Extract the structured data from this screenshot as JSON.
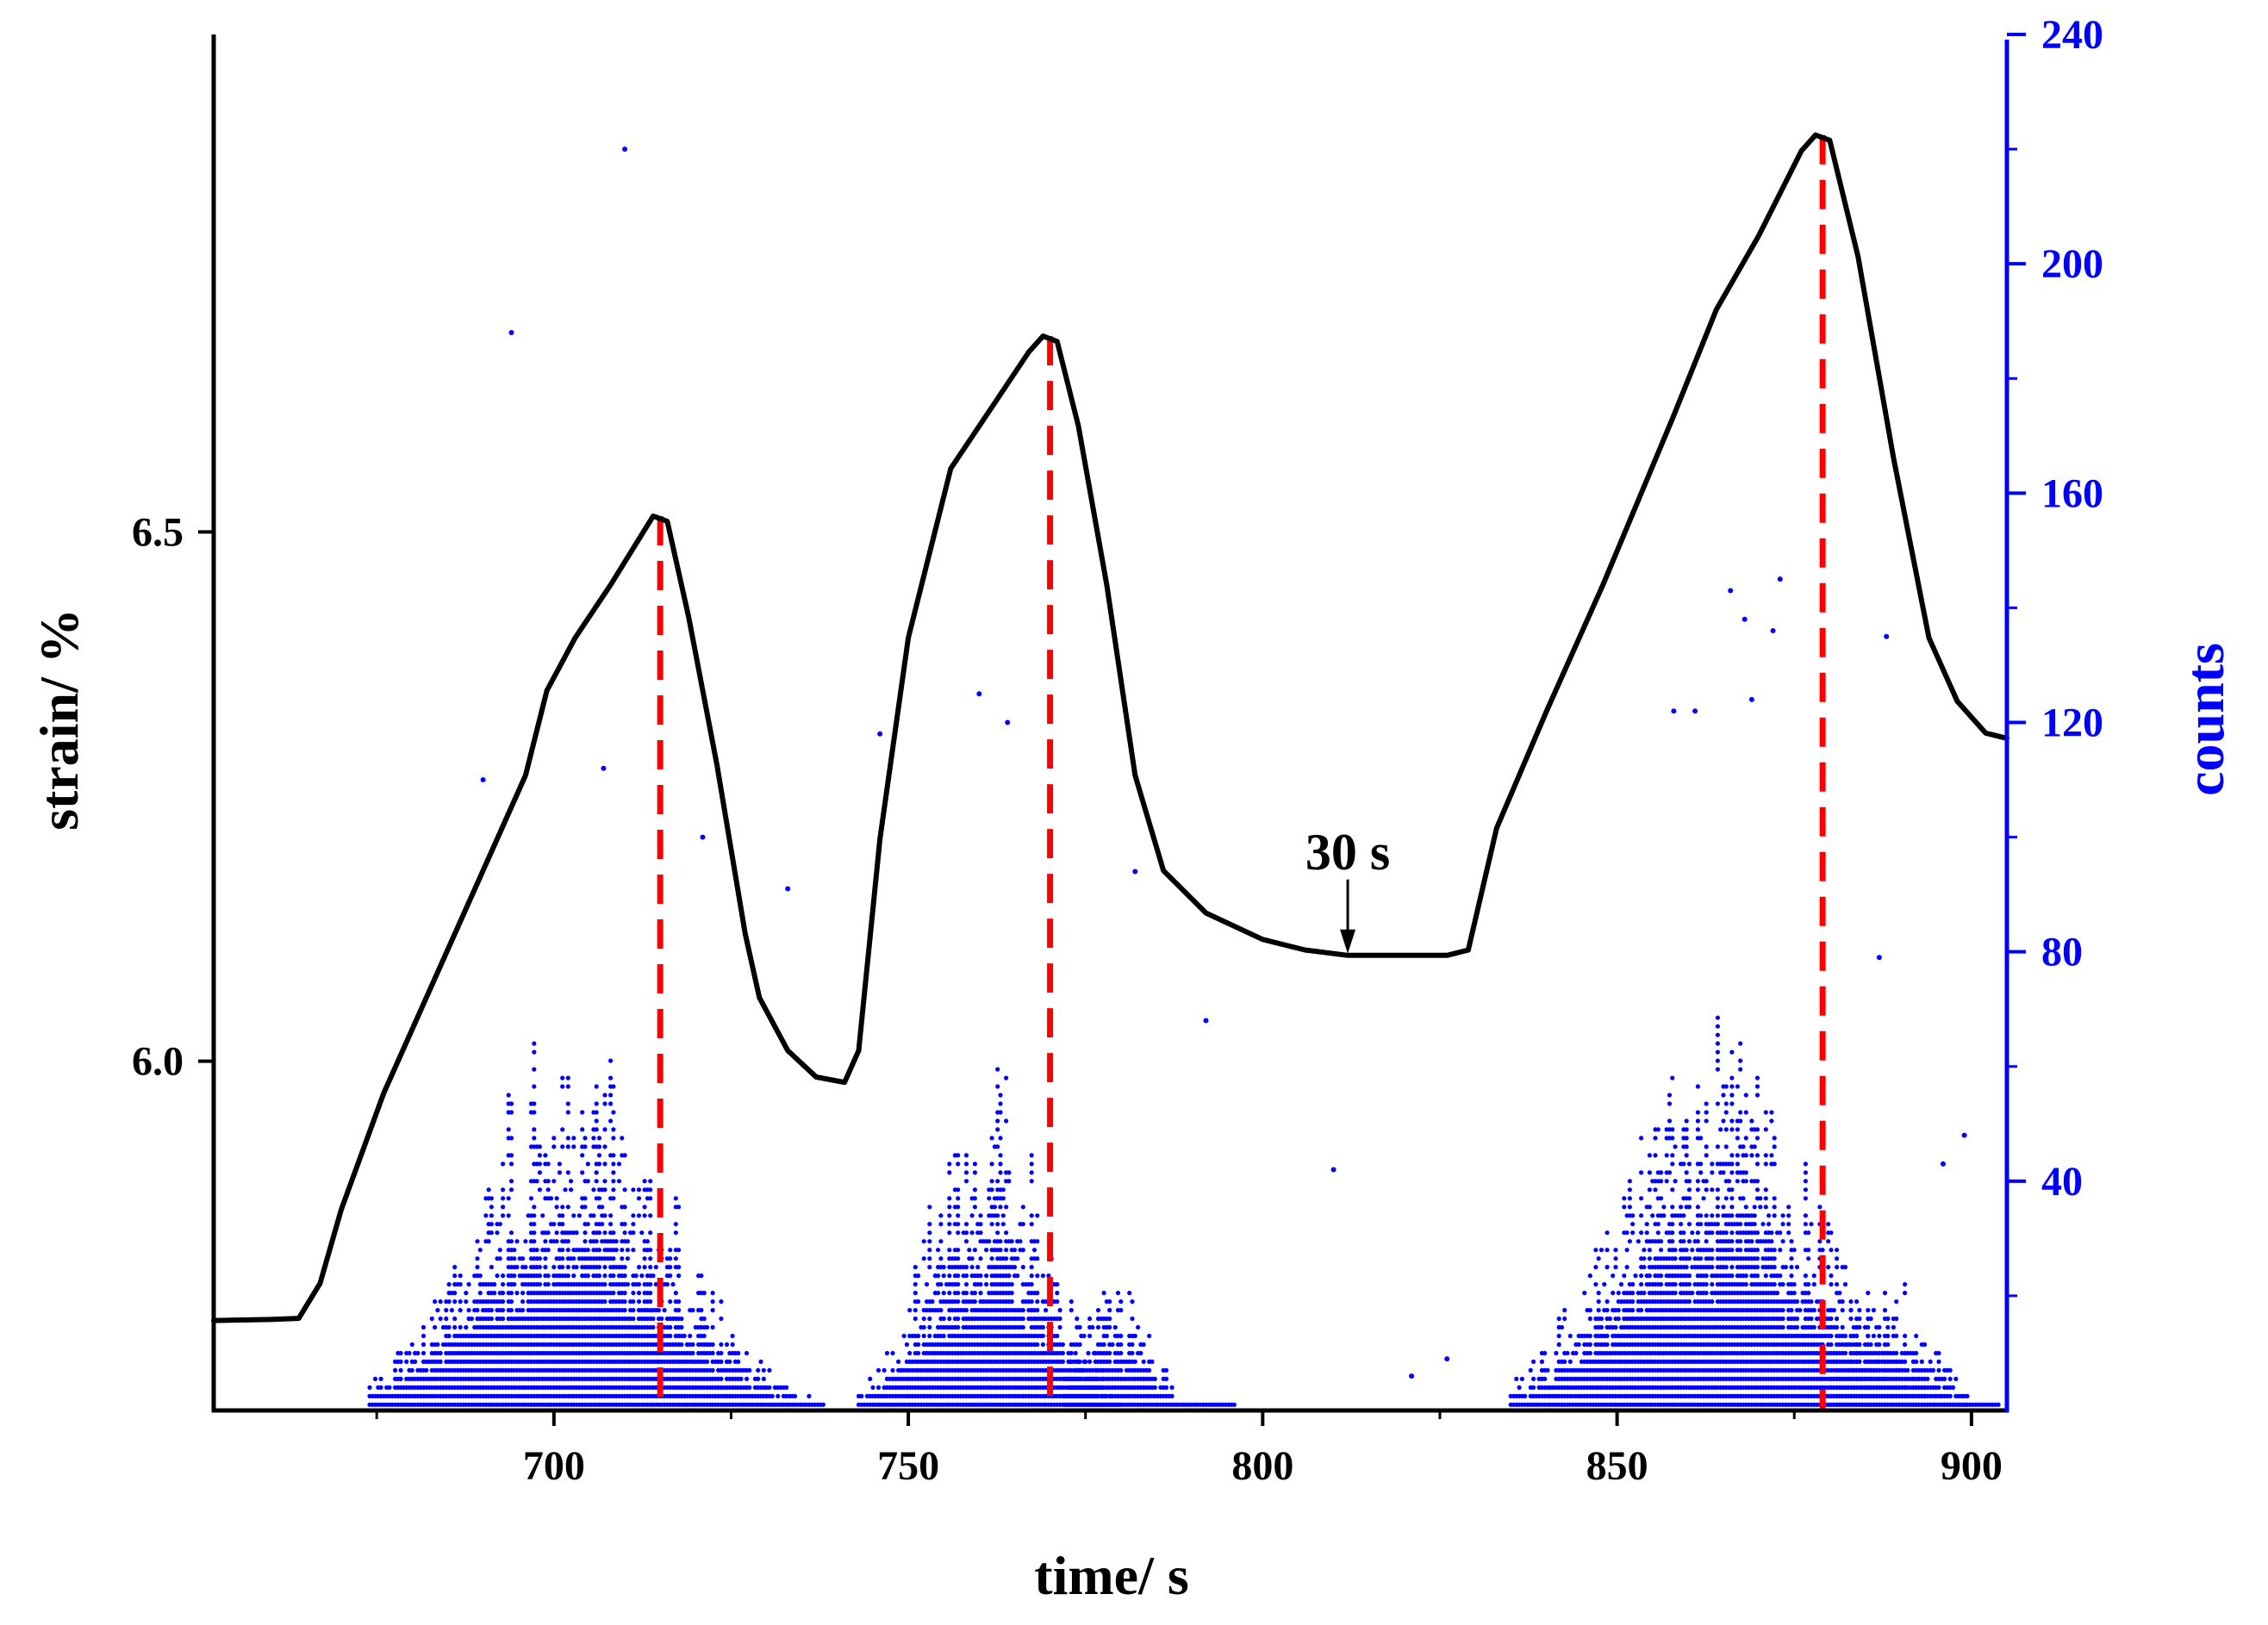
{
  "chart_data": {
    "type": "line+scatter",
    "title": "",
    "xlabel": "time/ s",
    "ylabel_left": "strain/ %",
    "ylabel_right": "counts",
    "xlim": [
      652,
      905
    ],
    "ylim_left": [
      5.67,
      6.97
    ],
    "ylim_right": [
      0,
      240
    ],
    "x_ticks": [
      700,
      750,
      800,
      850,
      900
    ],
    "y_ticks_left": [
      6.0,
      6.5
    ],
    "y_ticks_left_labels": [
      "6.0",
      "6.5"
    ],
    "y_ticks_right": [
      40,
      80,
      120,
      160,
      200,
      240
    ],
    "colors": {
      "strain": "#000000",
      "counts": "#0000ff",
      "peak_lines": "#ff0000",
      "axis_left": "#000000",
      "axis_right": "#0000ff"
    },
    "series": [
      {
        "name": "strain",
        "axis": "left",
        "style": "line",
        "points": [
          [
            652,
            5.755
          ],
          [
            660,
            5.756
          ],
          [
            664,
            5.757
          ],
          [
            667,
            5.79
          ],
          [
            670,
            5.86
          ],
          [
            676,
            5.97
          ],
          [
            684,
            6.09
          ],
          [
            692,
            6.21
          ],
          [
            696,
            6.27
          ],
          [
            699,
            6.35
          ],
          [
            703,
            6.4
          ],
          [
            708,
            6.45
          ],
          [
            714,
            6.515
          ],
          [
            716,
            6.51
          ],
          [
            719,
            6.42
          ],
          [
            723,
            6.28
          ],
          [
            727,
            6.12
          ],
          [
            729,
            6.06
          ],
          [
            733,
            6.01
          ],
          [
            737,
            5.985
          ],
          [
            741,
            5.98
          ],
          [
            743,
            6.01
          ],
          [
            746,
            6.21
          ],
          [
            750,
            6.4
          ],
          [
            756,
            6.56
          ],
          [
            762,
            6.62
          ],
          [
            767,
            6.67
          ],
          [
            769,
            6.685
          ],
          [
            771,
            6.68
          ],
          [
            774,
            6.6
          ],
          [
            778,
            6.45
          ],
          [
            782,
            6.27
          ],
          [
            786,
            6.18
          ],
          [
            792,
            6.14
          ],
          [
            800,
            6.115
          ],
          [
            806,
            6.105
          ],
          [
            812,
            6.1
          ],
          [
            820,
            6.1
          ],
          [
            826,
            6.1
          ],
          [
            829,
            6.105
          ],
          [
            833,
            6.22
          ],
          [
            840,
            6.33
          ],
          [
            848,
            6.45
          ],
          [
            858,
            6.61
          ],
          [
            864,
            6.71
          ],
          [
            870,
            6.78
          ],
          [
            876,
            6.86
          ],
          [
            878,
            6.875
          ],
          [
            880,
            6.87
          ],
          [
            884,
            6.76
          ],
          [
            889,
            6.57
          ],
          [
            894,
            6.4
          ],
          [
            898,
            6.34
          ],
          [
            902,
            6.31
          ],
          [
            905,
            6.305
          ]
        ]
      },
      {
        "name": "counts",
        "axis": "right",
        "style": "scatter",
        "clusters": [
          {
            "center": 703,
            "spread": 13,
            "lo": 674,
            "hi": 738,
            "peak": 60
          },
          {
            "center": 761,
            "spread": 8,
            "lo": 743,
            "hi": 780,
            "peak": 52
          },
          {
            "center": 779,
            "spread": 5,
            "lo": 772,
            "hi": 796,
            "peak": 20
          },
          {
            "center": 864,
            "spread": 13,
            "lo": 835,
            "hi": 900,
            "peak": 58
          },
          {
            "center": 888,
            "spread": 6,
            "lo": 879,
            "hi": 904,
            "peak": 22
          }
        ],
        "outliers": [
          [
            710,
            220
          ],
          [
            694,
            188
          ],
          [
            760,
            125
          ],
          [
            764,
            120
          ],
          [
            746,
            118
          ],
          [
            866,
            143
          ],
          [
            873,
            145
          ],
          [
            868,
            138
          ],
          [
            872,
            136
          ],
          [
            888,
            135
          ],
          [
            869,
            124
          ],
          [
            858,
            122
          ],
          [
            861,
            122
          ],
          [
            707,
            112
          ],
          [
            690,
            110
          ],
          [
            721,
            100
          ],
          [
            733,
            91
          ],
          [
            782,
            94
          ],
          [
            792,
            68
          ],
          [
            810,
            42
          ],
          [
            887,
            79
          ],
          [
            899,
            48
          ],
          [
            896,
            43
          ],
          [
            821,
            6
          ],
          [
            826,
            9
          ]
        ]
      }
    ],
    "vlines": [
      {
        "x": 715,
        "color": "#ff0000",
        "style": "dashed"
      },
      {
        "x": 770,
        "color": "#ff0000",
        "style": "dashed"
      },
      {
        "x": 879,
        "color": "#ff0000",
        "style": "dashed"
      }
    ],
    "annotations": [
      {
        "text": "30 s",
        "x": 812,
        "y": 6.1,
        "arrow": true
      }
    ]
  }
}
